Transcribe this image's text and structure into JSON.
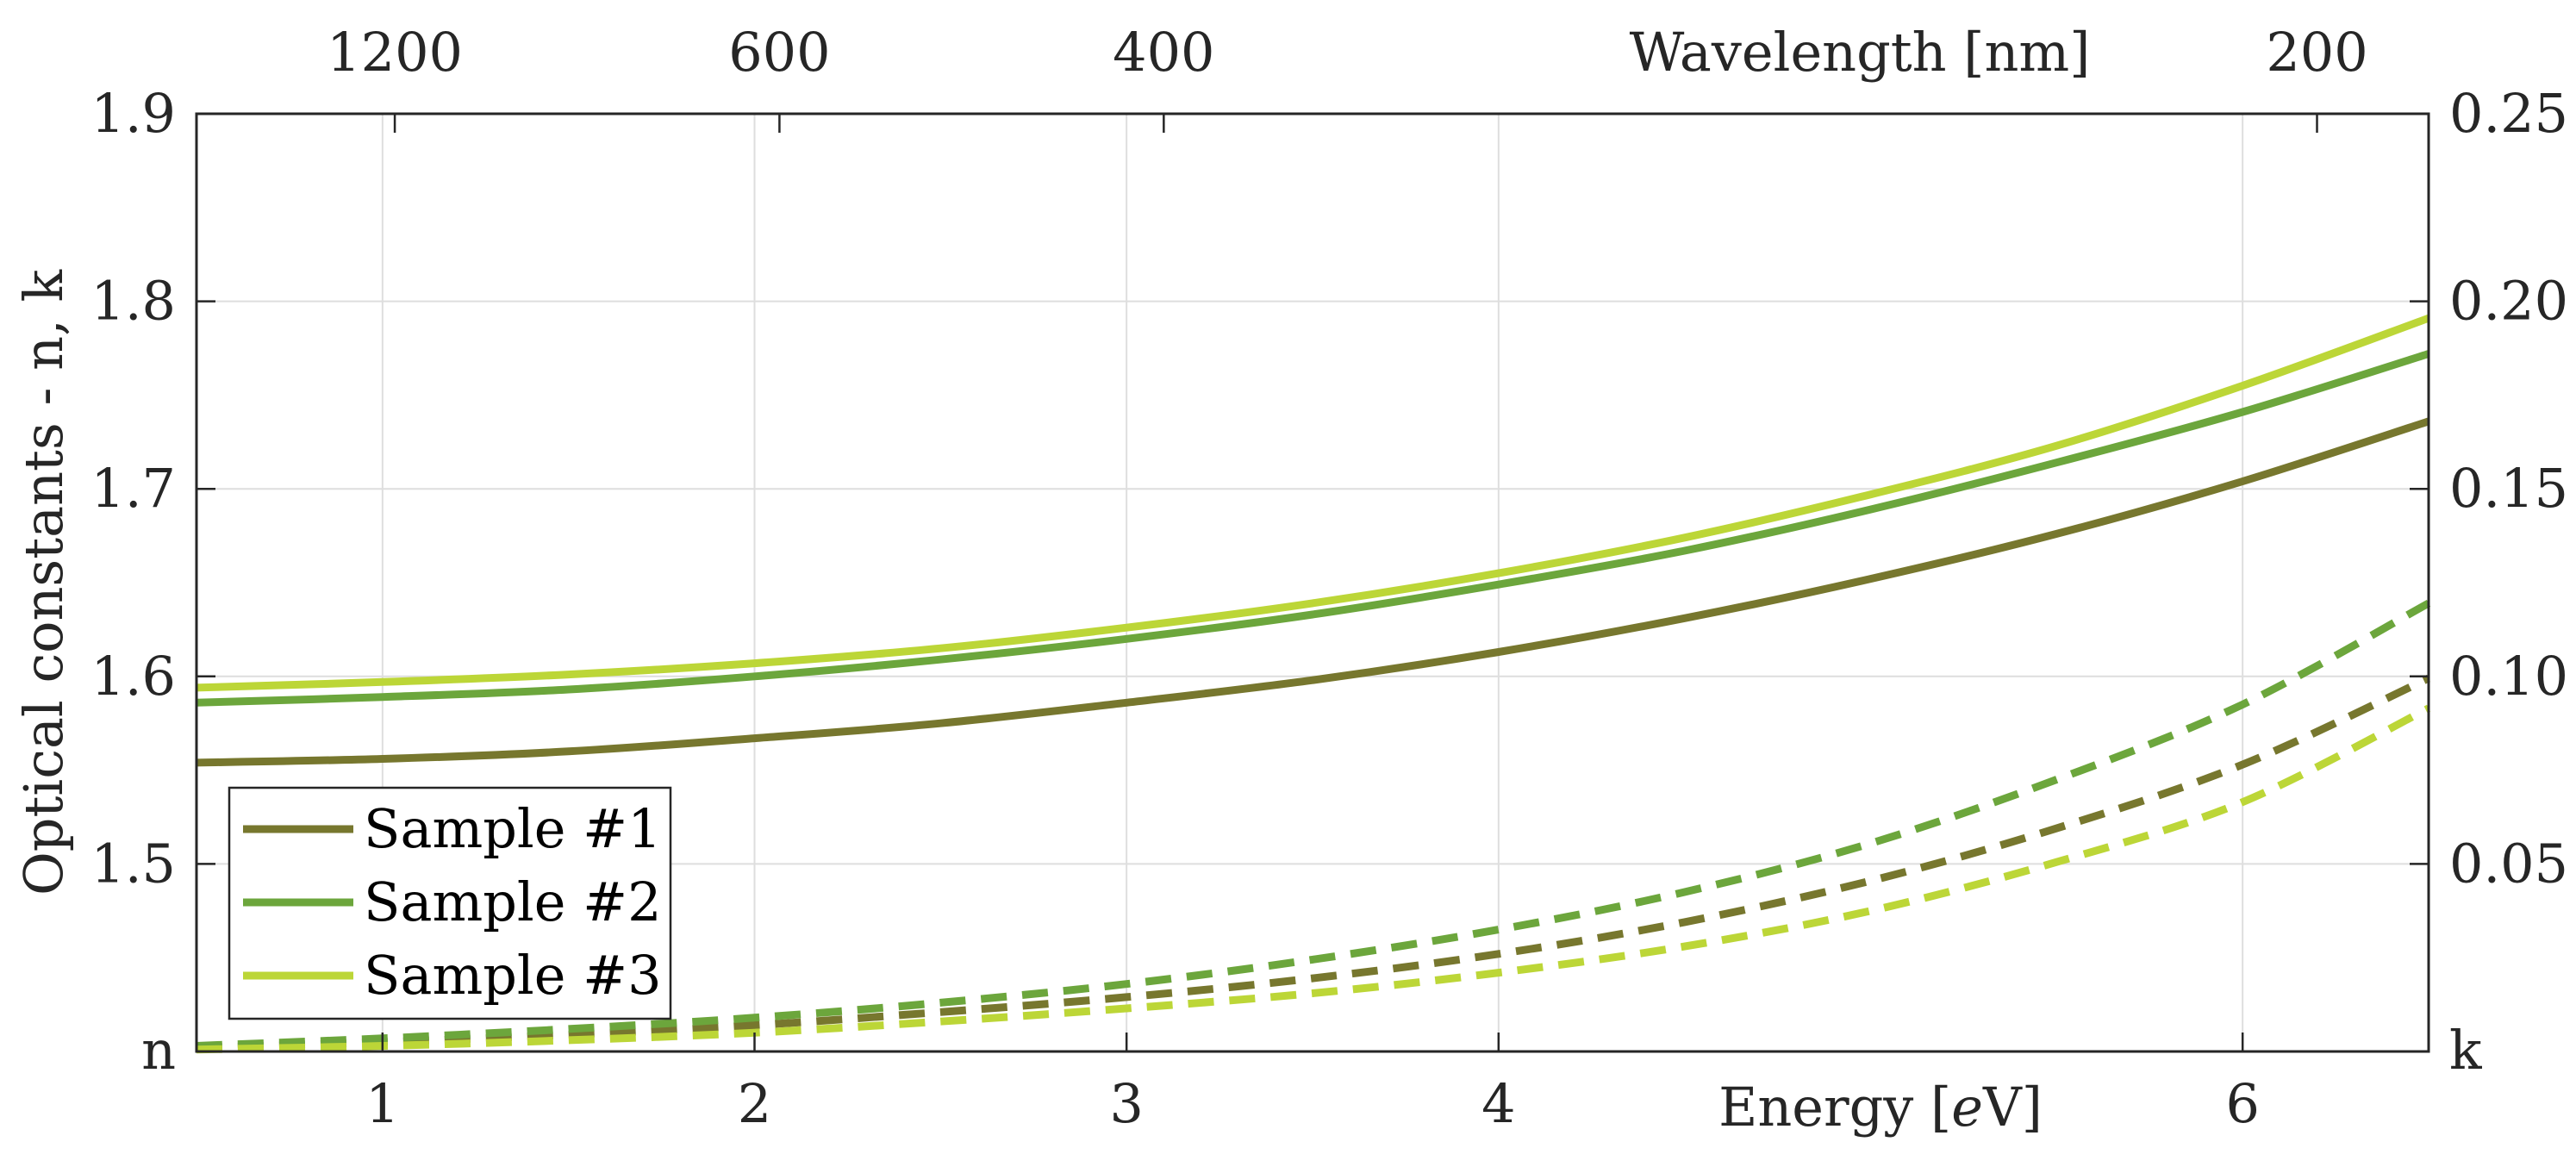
{
  "chart_data": {
    "type": "line",
    "title": "",
    "x": [
      0.5,
      1.0,
      1.5,
      2.0,
      2.5,
      3.0,
      3.5,
      4.0,
      4.5,
      5.0,
      5.5,
      6.0,
      6.5
    ],
    "xlim": [
      0.5,
      6.5
    ],
    "x_ticks": [
      1,
      2,
      3,
      4,
      6
    ],
    "xlabel_prefix": "Energy [",
    "xlabel_italic": "e",
    "xlabel_suffix": "V]",
    "top_axis": {
      "label": "Wavelength [nm]",
      "ticks": [
        {
          "label": "1200",
          "energy": 1.033
        },
        {
          "label": "600",
          "energy": 2.067
        },
        {
          "label": "400",
          "energy": 3.1
        },
        {
          "label": "200",
          "energy": 6.2
        }
      ]
    },
    "left_axis": {
      "label": "Optical constants - n, k",
      "ylim": [
        1.4,
        1.9
      ],
      "ticks": [
        1.5,
        1.6,
        1.7,
        1.8,
        1.9
      ],
      "tick_labels": [
        "1.5",
        "1.6",
        "1.7",
        "1.8",
        "1.9"
      ],
      "bottom_label": "n"
    },
    "right_axis": {
      "ylim": [
        0,
        0.25
      ],
      "ticks": [
        0.05,
        0.1,
        0.15,
        0.2,
        0.25
      ],
      "tick_labels": [
        "0.05",
        "0.10",
        "0.15",
        "0.20",
        "0.25"
      ],
      "bottom_label": "k"
    },
    "grid": true,
    "legend_position": "bottom-left",
    "series": [
      {
        "name": "Sample #1",
        "color": "#77772e",
        "n": [
          1.554,
          1.556,
          1.56,
          1.567,
          1.575,
          1.586,
          1.598,
          1.613,
          1.631,
          1.652,
          1.676,
          1.704,
          1.736
        ],
        "k": [
          0.001,
          0.0025,
          0.0045,
          0.007,
          0.0105,
          0.0145,
          0.0195,
          0.026,
          0.0345,
          0.0455,
          0.0595,
          0.0765,
          0.0995
        ]
      },
      {
        "name": "Sample #2",
        "color": "#6ca63c",
        "n": [
          1.586,
          1.589,
          1.593,
          1.6,
          1.609,
          1.62,
          1.633,
          1.649,
          1.667,
          1.689,
          1.714,
          1.741,
          1.772
        ],
        "k": [
          0.0015,
          0.0035,
          0.006,
          0.009,
          0.013,
          0.018,
          0.0245,
          0.0325,
          0.0425,
          0.0555,
          0.0725,
          0.0925,
          0.1195
        ]
      },
      {
        "name": "Sample #3",
        "color": "#bcd637",
        "n": [
          1.594,
          1.597,
          1.601,
          1.607,
          1.615,
          1.626,
          1.639,
          1.655,
          1.674,
          1.697,
          1.723,
          1.755,
          1.791
        ],
        "k": [
          0.0005,
          0.0015,
          0.003,
          0.005,
          0.008,
          0.0115,
          0.0155,
          0.021,
          0.028,
          0.0375,
          0.0505,
          0.0665,
          0.0915
        ]
      }
    ]
  }
}
